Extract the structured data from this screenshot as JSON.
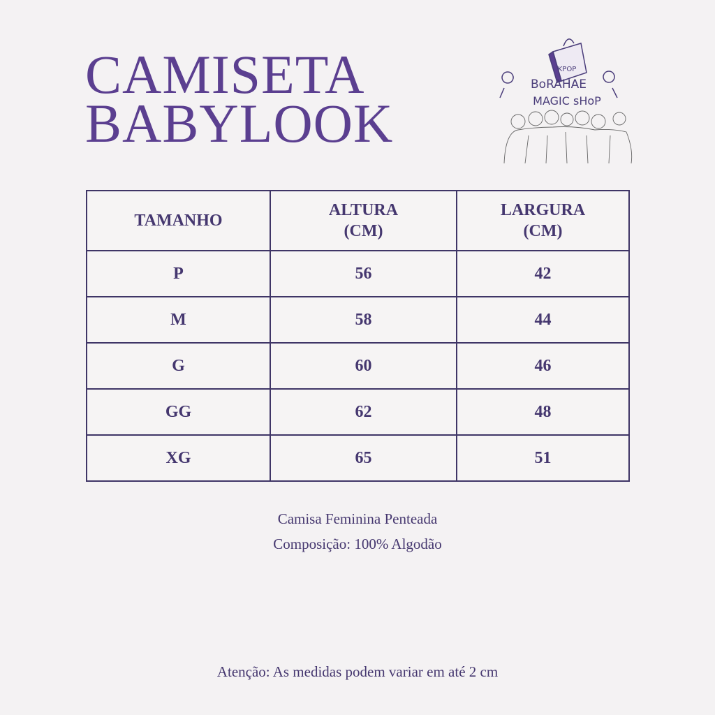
{
  "title": {
    "line1": "CAMISETA",
    "line2": "BABYLOOK"
  },
  "logo": {
    "text_top": "BoRAHAE",
    "text_bottom": "MAGIC sHoP",
    "bag_text": "KPOP"
  },
  "table": {
    "headers": [
      {
        "line1": "TAMANHO",
        "line2": ""
      },
      {
        "line1": "ALTURA",
        "line2": "(CM)"
      },
      {
        "line1": "LARGURA",
        "line2": "(CM)"
      }
    ],
    "rows": [
      {
        "size": "P",
        "altura": "56",
        "largura": "42"
      },
      {
        "size": "M",
        "altura": "58",
        "largura": "44"
      },
      {
        "size": "G",
        "altura": "60",
        "largura": "46"
      },
      {
        "size": "GG",
        "altura": "62",
        "largura": "48"
      },
      {
        "size": "XG",
        "altura": "65",
        "largura": "51"
      }
    ]
  },
  "description": {
    "line1": "Camisa Feminina Penteada",
    "line2": "Composição: 100% Algodão"
  },
  "warning": "Atenção: As medidas podem variar em até 2 cm",
  "colors": {
    "background": "#f4f2f3",
    "title": "#5b3f90",
    "text": "#45376f",
    "border": "#3f3566"
  }
}
